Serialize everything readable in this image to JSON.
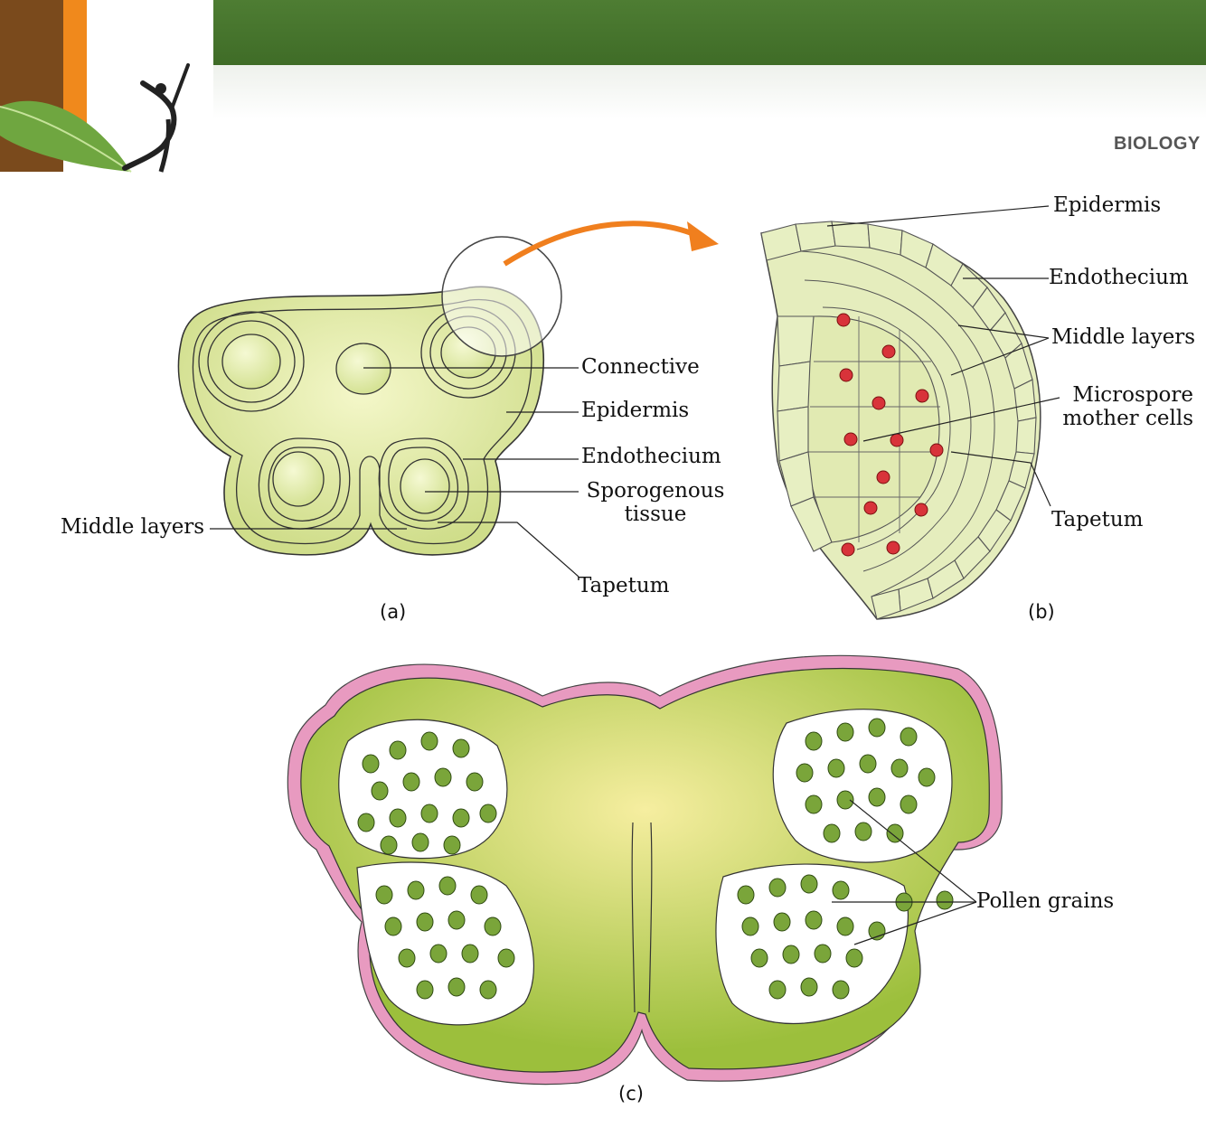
{
  "header": {
    "subject": "BIOLOGY",
    "colors": {
      "banner": "#467731",
      "orange_stripe": "#f0891c",
      "brown_stripe": "#7a4a1c"
    }
  },
  "figure_a": {
    "caption": "(a)",
    "labels": {
      "connective": "Connective",
      "epidermis": "Epidermis",
      "endothecium": "Endothecium",
      "sporogenous_line1": "Sporogenous",
      "sporogenous_line2": "tissue",
      "middle_layers": "Middle layers",
      "tapetum": "Tapetum"
    }
  },
  "figure_b": {
    "caption": "(b)",
    "labels": {
      "epidermis": "Epidermis",
      "endothecium": "Endothecium",
      "middle_layers": "Middle layers",
      "microspore_line1": "Microspore",
      "microspore_line2": "mother cells",
      "tapetum": "Tapetum"
    }
  },
  "figure_c": {
    "caption": "(c)",
    "labels": {
      "pollen_grains": "Pollen grains"
    }
  },
  "colors": {
    "tissue_light": "#e3ecb8",
    "tissue_mid": "#c9db83",
    "tissue_dark": "#8fb43a",
    "pollen": "#7aa53a",
    "epidermis_pink": "#e89ac0",
    "nucleus_red": "#d8333a",
    "arrow_orange": "#f07f1e"
  }
}
